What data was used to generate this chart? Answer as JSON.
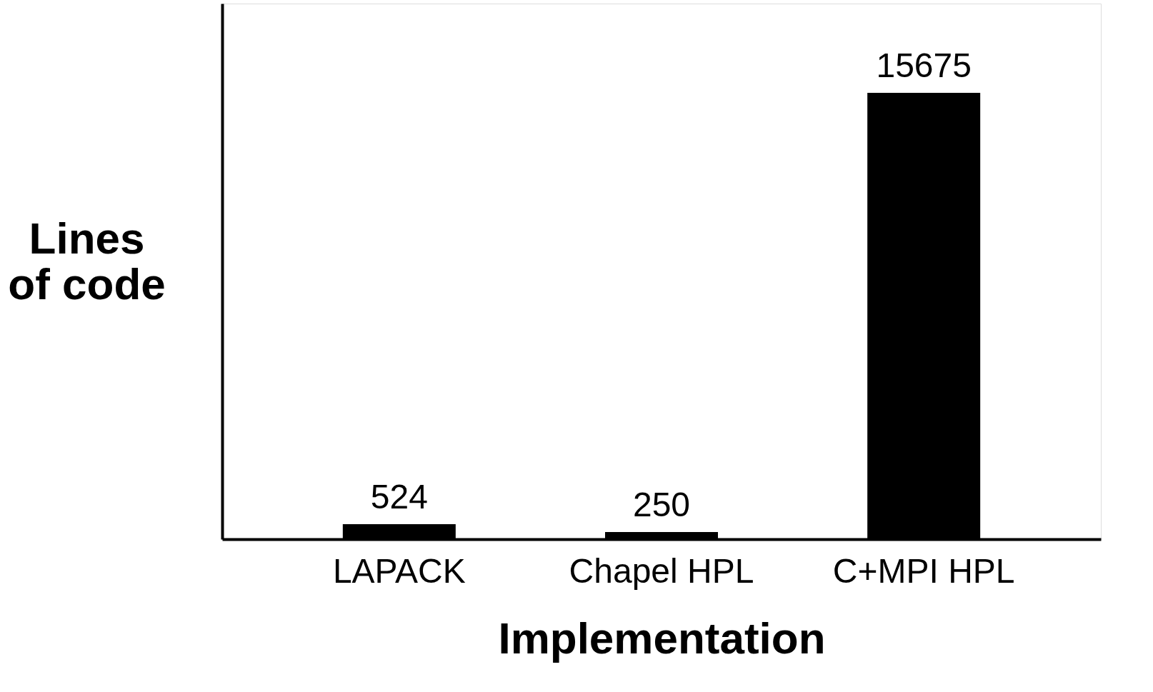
{
  "chart_data": {
    "type": "bar",
    "xlabel": "Implementation",
    "ylabel": "Lines of code",
    "categories": [
      "LAPACK",
      "Chapel HPL",
      "C+MPI HPL"
    ],
    "values": [
      524,
      250,
      15675
    ],
    "colors": [
      "#000000",
      "#000000",
      "#000000"
    ],
    "tick_labels": "x",
    "data_labels": true
  }
}
